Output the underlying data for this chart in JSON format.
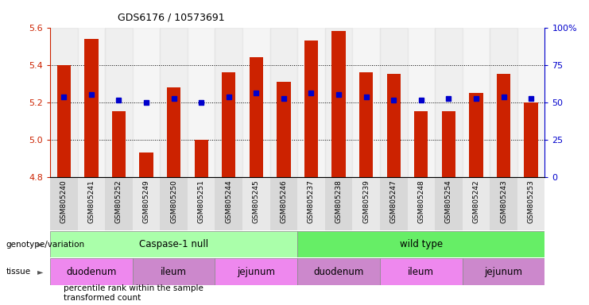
{
  "title": "GDS6176 / 10573691",
  "samples": [
    "GSM805240",
    "GSM805241",
    "GSM805252",
    "GSM805249",
    "GSM805250",
    "GSM805251",
    "GSM805244",
    "GSM805245",
    "GSM805246",
    "GSM805237",
    "GSM805238",
    "GSM805239",
    "GSM805247",
    "GSM805248",
    "GSM805254",
    "GSM805242",
    "GSM805243",
    "GSM805253"
  ],
  "bar_values": [
    5.4,
    5.54,
    5.15,
    4.93,
    5.28,
    5.0,
    5.36,
    5.44,
    5.31,
    5.53,
    5.58,
    5.36,
    5.35,
    5.15,
    5.15,
    5.25,
    5.35,
    5.2
  ],
  "percentile_values": [
    5.23,
    5.24,
    5.21,
    5.2,
    5.22,
    5.2,
    5.23,
    5.25,
    5.22,
    5.25,
    5.24,
    5.23,
    5.21,
    5.21,
    5.22,
    5.22,
    5.23,
    5.22
  ],
  "ylim_left": [
    4.8,
    5.6
  ],
  "ylim_right": [
    0,
    100
  ],
  "yticks_left": [
    4.8,
    5.0,
    5.2,
    5.4,
    5.6
  ],
  "yticks_right": [
    0,
    25,
    50,
    75,
    100
  ],
  "bar_color": "#cc2200",
  "percentile_color": "#0000cc",
  "genotype_groups": [
    {
      "label": "Caspase-1 null",
      "start": 0,
      "end": 9,
      "color": "#aaffaa"
    },
    {
      "label": "wild type",
      "start": 9,
      "end": 18,
      "color": "#66ee66"
    }
  ],
  "tissue_groups": [
    {
      "label": "duodenum",
      "start": 0,
      "end": 3,
      "color": "#ee88ee"
    },
    {
      "label": "ileum",
      "start": 3,
      "end": 6,
      "color": "#cc88cc"
    },
    {
      "label": "jejunum",
      "start": 6,
      "end": 9,
      "color": "#ee88ee"
    },
    {
      "label": "duodenum",
      "start": 9,
      "end": 12,
      "color": "#cc88cc"
    },
    {
      "label": "ileum",
      "start": 12,
      "end": 15,
      "color": "#ee88ee"
    },
    {
      "label": "jejunum",
      "start": 15,
      "end": 18,
      "color": "#cc88cc"
    }
  ],
  "genotype_label": "genotype/variation",
  "tissue_label": "tissue",
  "legend_items": [
    {
      "label": "transformed count",
      "color": "#cc2200"
    },
    {
      "label": "percentile rank within the sample",
      "color": "#0000cc"
    }
  ],
  "dotted_lines": [
    5.0,
    5.2,
    5.4
  ],
  "bar_width": 0.5,
  "col_bg_even": "#d8d8d8",
  "col_bg_odd": "#e8e8e8"
}
